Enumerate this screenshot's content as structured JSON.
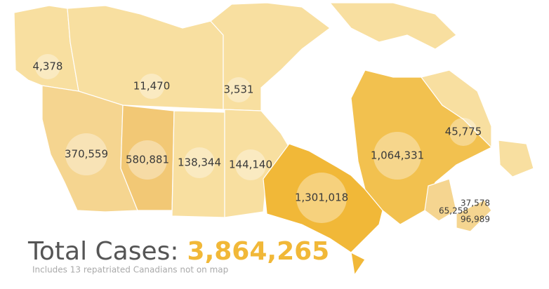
{
  "regions": [
    {
      "cases": "4,378"
    },
    {
      "cases": "11,470"
    },
    {
      "cases": "3,531"
    },
    {
      "cases": "370,559"
    },
    {
      "cases": "580,881"
    },
    {
      "cases": "138,344"
    },
    {
      "cases": "144,140"
    },
    {
      "cases": "1,301,018"
    },
    {
      "cases": "1,064,331"
    },
    {
      "cases": "45,775"
    },
    {
      "cases": "37,578"
    },
    {
      "cases": "65,258"
    },
    {
      "cases": "96,989"
    }
  ],
  "total": {
    "label": "Total Cases:",
    "value": "3,864,265"
  },
  "note": "Includes 13 repatriated Canadians not on map"
}
